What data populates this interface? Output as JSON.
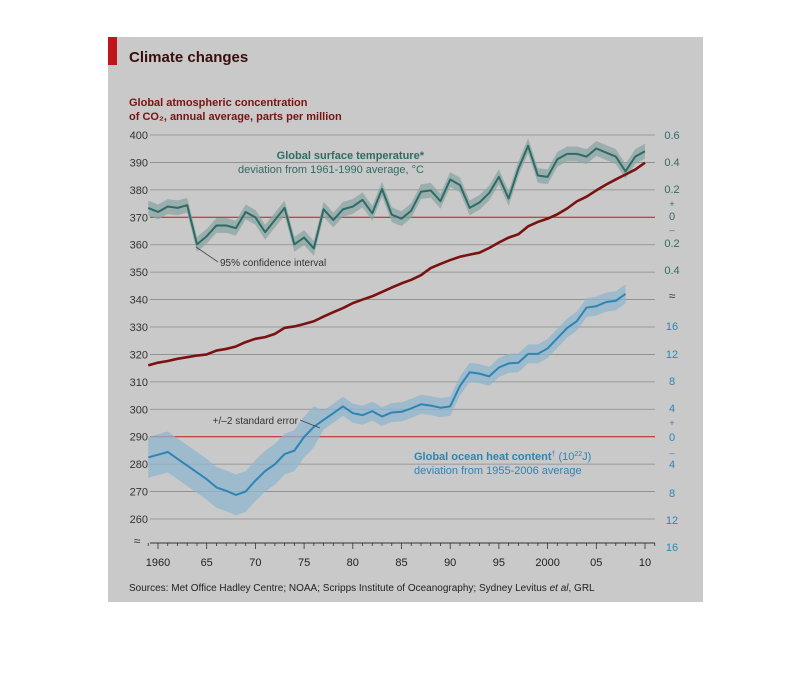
{
  "title": "Climate changes",
  "sources": {
    "prefix": "Sources: Met Office Hadley Centre; NOAA; Scripps Institute of Oceanography; Sydney Levitus ",
    "italic": "et al",
    "suffix": ", GRL"
  },
  "colors": {
    "co2": "#7a1212",
    "temperature": "#2f6b66",
    "ocean": "#2e85b3",
    "accent": "#c0161b",
    "band_temp": "#8aa6a3",
    "band_ocean": "#8fb6cf"
  },
  "chart_data": {
    "type": "line",
    "x_ticks": [
      "1960",
      "65",
      "70",
      "75",
      "80",
      "85",
      "90",
      "95",
      "2000",
      "05",
      "10"
    ],
    "x_range": [
      1959,
      2011
    ],
    "left_axis": {
      "label_line1": "Global atmospheric concentration",
      "label_line2": "of CO₂, annual average, parts per million",
      "ticks": [
        "400",
        "390",
        "380",
        "370",
        "360",
        "350",
        "340",
        "330",
        "320",
        "310",
        "300",
        "290",
        "280",
        "270",
        "260"
      ],
      "range": [
        255,
        400
      ]
    },
    "right_axis_top": {
      "ticks": [
        "0.6",
        "0.4",
        "0.2",
        "+",
        "0",
        "–",
        "0.2",
        "0.4"
      ],
      "break_symbol": "≈"
    },
    "right_axis_bottom": {
      "ticks": [
        "16",
        "12",
        "8",
        "4",
        "+",
        "0",
        "–",
        "4",
        "8",
        "12",
        "16"
      ]
    },
    "left_break_symbol": "≈",
    "series": [
      {
        "name": "Global atmospheric concentration of CO₂",
        "unit": "ppm",
        "x": [
          1959,
          1960,
          1961,
          1962,
          1963,
          1964,
          1965,
          1966,
          1967,
          1968,
          1969,
          1970,
          1971,
          1972,
          1973,
          1974,
          1975,
          1976,
          1977,
          1978,
          1979,
          1980,
          1981,
          1982,
          1983,
          1984,
          1985,
          1986,
          1987,
          1988,
          1989,
          1990,
          1991,
          1992,
          1993,
          1994,
          1995,
          1996,
          1997,
          1998,
          1999,
          2000,
          2001,
          2002,
          2003,
          2004,
          2005,
          2006,
          2007,
          2008,
          2009,
          2010
        ],
        "y": [
          316,
          317,
          317.6,
          318.4,
          319,
          319.6,
          320,
          321.4,
          322,
          322.9,
          324.5,
          325.7,
          326.3,
          327.5,
          329.7,
          330.2,
          331.1,
          332.1,
          333.8,
          335.4,
          336.9,
          338.7,
          340,
          341.2,
          342.8,
          344.4,
          345.9,
          347.2,
          348.9,
          351.5,
          353,
          354.4,
          355.6,
          356.4,
          357.1,
          358.8,
          360.8,
          362.6,
          363.8,
          366.7,
          368.3,
          369.5,
          371.1,
          373.2,
          375.8,
          377.5,
          379.8,
          381.9,
          383.8,
          385.6,
          387.4,
          389.9
        ]
      },
      {
        "name": "Global surface temperature",
        "title": "Global surface temperature*",
        "subtitle": "deviation from 1961-1990 average, °C",
        "band_label": "95% confidence interval",
        "unit": "°C",
        "x": [
          1959,
          1960,
          1961,
          1962,
          1963,
          1964,
          1965,
          1966,
          1967,
          1968,
          1969,
          1970,
          1971,
          1972,
          1973,
          1974,
          1975,
          1976,
          1977,
          1978,
          1979,
          1980,
          1981,
          1982,
          1983,
          1984,
          1985,
          1986,
          1987,
          1988,
          1989,
          1990,
          1991,
          1992,
          1993,
          1994,
          1995,
          1996,
          1997,
          1998,
          1999,
          2000,
          2001,
          2002,
          2003,
          2004,
          2005,
          2006,
          2007,
          2008,
          2009,
          2010
        ],
        "y": [
          0.06,
          0.03,
          0.07,
          0.06,
          0.08,
          -0.21,
          -0.15,
          -0.07,
          -0.07,
          -0.09,
          0.03,
          -0.01,
          -0.12,
          -0.03,
          0.06,
          -0.21,
          -0.16,
          -0.24,
          0.05,
          -0.03,
          0.05,
          0.07,
          0.12,
          0.02,
          0.2,
          0.01,
          -0.02,
          0.04,
          0.18,
          0.19,
          0.11,
          0.27,
          0.23,
          0.06,
          0.1,
          0.17,
          0.29,
          0.13,
          0.35,
          0.52,
          0.3,
          0.29,
          0.42,
          0.46,
          0.46,
          0.44,
          0.5,
          0.47,
          0.44,
          0.33,
          0.44,
          0.48
        ]
      },
      {
        "name": "Global ocean heat content",
        "title": "Global ocean heat content",
        "title_mark": "†",
        "unit_base": "(10",
        "unit_exp": "22",
        "unit_end": "J)",
        "subtitle": "deviation from 1955-2006 average",
        "band_label": "+/–2 standard error",
        "x": [
          1959,
          1960,
          1961,
          1962,
          1963,
          1964,
          1965,
          1966,
          1967,
          1968,
          1969,
          1970,
          1971,
          1972,
          1973,
          1974,
          1975,
          1976,
          1977,
          1978,
          1979,
          1980,
          1981,
          1982,
          1983,
          1984,
          1985,
          1986,
          1987,
          1988,
          1989,
          1990,
          1991,
          1992,
          1993,
          1994,
          1995,
          1996,
          1997,
          1998,
          1999,
          2000,
          2001,
          2002,
          2003,
          2004,
          2005,
          2006,
          2007,
          2008
        ],
        "y": [
          -3,
          -2.6,
          -2.2,
          -3.2,
          -4.2,
          -5.2,
          -6.2,
          -7.4,
          -7.9,
          -8.5,
          -8,
          -6.4,
          -5,
          -4,
          -2.5,
          -2,
          0,
          1.5,
          2.5,
          3.5,
          4.5,
          3.5,
          3.2,
          3.8,
          3,
          3.6,
          3.7,
          4.2,
          4.8,
          4.6,
          4.3,
          4.5,
          7.5,
          9.5,
          9.3,
          8.9,
          10.2,
          10.8,
          10.9,
          12.2,
          12.2,
          13,
          14.5,
          16,
          17,
          19,
          19.2,
          19.8,
          20,
          21
        ]
      }
    ],
    "annotations": [
      "95% confidence interval",
      "+/–2 standard error"
    ],
    "grid": true
  }
}
